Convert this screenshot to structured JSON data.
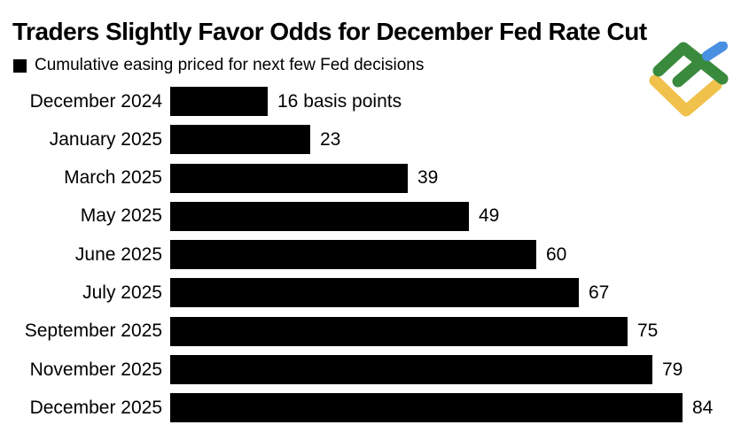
{
  "title": "Traders Slightly Favor Odds for December Fed Rate Cut",
  "legend": {
    "label": "Cumulative easing priced for next few Fed decisions",
    "swatch_color": "#000000"
  },
  "logo": {
    "name": "litefinance-logo",
    "colors": {
      "green": "#3A8A3E",
      "blue": "#4A90E2",
      "yellow": "#F0C14B"
    }
  },
  "chart_data": {
    "type": "bar",
    "orientation": "horizontal",
    "title": "Traders Slightly Favor Odds for December Fed Rate Cut",
    "series_label": "Cumulative easing priced for next few Fed decisions",
    "unit": "basis points",
    "categories": [
      "December 2024",
      "January 2025",
      "March 2025",
      "May 2025",
      "June 2025",
      "July 2025",
      "September 2025",
      "November 2025",
      "December 2025"
    ],
    "values": [
      16,
      23,
      39,
      49,
      60,
      67,
      75,
      79,
      84
    ],
    "value_labels": [
      "16 basis points",
      "23",
      "39",
      "49",
      "60",
      "67",
      "75",
      "79",
      "84"
    ],
    "bar_color": "#000000",
    "xlim": [
      0,
      84
    ],
    "grid": false,
    "axis_ticks": false,
    "value_labels_position": "outside-end"
  }
}
